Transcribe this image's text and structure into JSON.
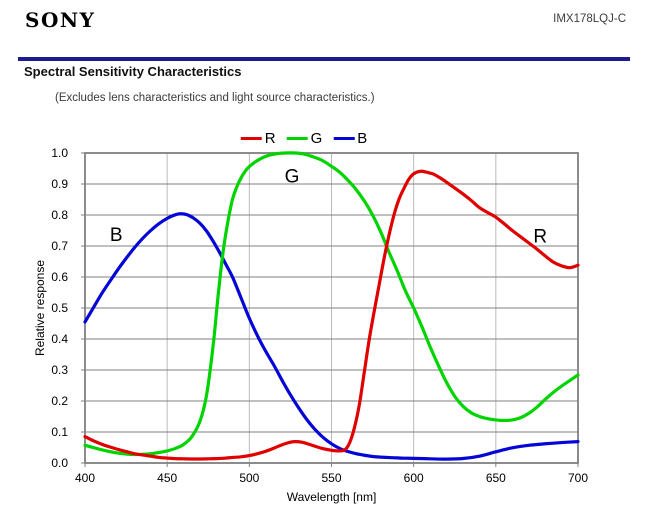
{
  "header": {
    "brand": "SONY",
    "product": "IMX178LQJ-C"
  },
  "title": "Spectral Sensitivity Characteristics",
  "subtitle": "(Excludes lens characteristics and light source characteristics.)",
  "colors": {
    "header_rule": "#1c1c8e",
    "grid_horizontal": "#808080",
    "grid_vertical": "#bbbbbb",
    "plot_border": "#808080",
    "red_series": "#e00000",
    "green_series": "#00d400",
    "blue_series": "#0505d6"
  },
  "chart_data": {
    "type": "line",
    "title": "",
    "xlabel": "Wavelength [nm]",
    "ylabel": "Relative response",
    "xlim": [
      400,
      700
    ],
    "ylim": [
      0,
      1.0
    ],
    "xticks": [
      400,
      450,
      500,
      550,
      600,
      650,
      700
    ],
    "yticks": [
      "0.0",
      "0.1",
      "0.2",
      "0.3",
      "0.4",
      "0.5",
      "0.6",
      "0.7",
      "0.8",
      "0.9",
      "1.0"
    ],
    "grid": true,
    "legend_position": "top-center",
    "annotations": [
      {
        "text": "B",
        "x_nm": 419,
        "y_val": 0.735
      },
      {
        "text": "G",
        "x_nm": 526,
        "y_val": 0.925
      },
      {
        "text": "R",
        "x_nm": 677,
        "y_val": 0.73
      }
    ],
    "series": [
      {
        "name": "R",
        "color": "#e00000",
        "points": [
          [
            400,
            0.085
          ],
          [
            405,
            0.072
          ],
          [
            410,
            0.061
          ],
          [
            415,
            0.052
          ],
          [
            420,
            0.044
          ],
          [
            425,
            0.037
          ],
          [
            430,
            0.03
          ],
          [
            435,
            0.026
          ],
          [
            440,
            0.022
          ],
          [
            445,
            0.018
          ],
          [
            450,
            0.016
          ],
          [
            455,
            0.014
          ],
          [
            460,
            0.0135
          ],
          [
            465,
            0.013
          ],
          [
            470,
            0.013
          ],
          [
            475,
            0.0135
          ],
          [
            480,
            0.014
          ],
          [
            485,
            0.0155
          ],
          [
            490,
            0.018
          ],
          [
            495,
            0.02
          ],
          [
            500,
            0.024
          ],
          [
            505,
            0.03
          ],
          [
            510,
            0.038
          ],
          [
            515,
            0.048
          ],
          [
            520,
            0.059
          ],
          [
            525,
            0.067
          ],
          [
            528,
            0.069
          ],
          [
            532,
            0.067
          ],
          [
            536,
            0.061
          ],
          [
            540,
            0.054
          ],
          [
            545,
            0.046
          ],
          [
            550,
            0.041
          ],
          [
            554,
            0.039
          ],
          [
            558,
            0.042
          ],
          [
            561,
            0.065
          ],
          [
            564,
            0.115
          ],
          [
            567,
            0.19
          ],
          [
            570,
            0.295
          ],
          [
            573,
            0.4
          ],
          [
            576,
            0.49
          ],
          [
            579,
            0.575
          ],
          [
            582,
            0.66
          ],
          [
            585,
            0.735
          ],
          [
            588,
            0.8
          ],
          [
            591,
            0.85
          ],
          [
            594,
            0.885
          ],
          [
            597,
            0.915
          ],
          [
            600,
            0.933
          ],
          [
            604,
            0.941
          ],
          [
            608,
            0.938
          ],
          [
            612,
            0.932
          ],
          [
            616,
            0.92
          ],
          [
            620,
            0.906
          ],
          [
            625,
            0.887
          ],
          [
            630,
            0.868
          ],
          [
            635,
            0.847
          ],
          [
            640,
            0.824
          ],
          [
            645,
            0.808
          ],
          [
            650,
            0.793
          ],
          [
            655,
            0.772
          ],
          [
            660,
            0.75
          ],
          [
            665,
            0.73
          ],
          [
            670,
            0.71
          ],
          [
            675,
            0.69
          ],
          [
            680,
            0.668
          ],
          [
            685,
            0.648
          ],
          [
            690,
            0.636
          ],
          [
            695,
            0.63
          ],
          [
            700,
            0.638
          ]
        ]
      },
      {
        "name": "G",
        "color": "#00d400",
        "points": [
          [
            400,
            0.057
          ],
          [
            405,
            0.05
          ],
          [
            410,
            0.043
          ],
          [
            415,
            0.037
          ],
          [
            420,
            0.032
          ],
          [
            425,
            0.029
          ],
          [
            430,
            0.0275
          ],
          [
            435,
            0.028
          ],
          [
            440,
            0.03
          ],
          [
            445,
            0.034
          ],
          [
            450,
            0.039
          ],
          [
            455,
            0.047
          ],
          [
            460,
            0.06
          ],
          [
            465,
            0.085
          ],
          [
            470,
            0.135
          ],
          [
            474,
            0.22
          ],
          [
            478,
            0.38
          ],
          [
            481,
            0.54
          ],
          [
            484,
            0.68
          ],
          [
            487,
            0.78
          ],
          [
            490,
            0.855
          ],
          [
            494,
            0.91
          ],
          [
            498,
            0.945
          ],
          [
            502,
            0.965
          ],
          [
            507,
            0.982
          ],
          [
            512,
            0.993
          ],
          [
            517,
            0.998
          ],
          [
            522,
            1.0
          ],
          [
            528,
            1.0
          ],
          [
            533,
            0.997
          ],
          [
            538,
            0.989
          ],
          [
            544,
            0.977
          ],
          [
            550,
            0.957
          ],
          [
            555,
            0.938
          ],
          [
            560,
            0.912
          ],
          [
            565,
            0.882
          ],
          [
            570,
            0.845
          ],
          [
            575,
            0.8
          ],
          [
            580,
            0.745
          ],
          [
            585,
            0.68
          ],
          [
            590,
            0.62
          ],
          [
            595,
            0.555
          ],
          [
            600,
            0.5
          ],
          [
            605,
            0.44
          ],
          [
            610,
            0.375
          ],
          [
            615,
            0.315
          ],
          [
            620,
            0.26
          ],
          [
            625,
            0.215
          ],
          [
            630,
            0.183
          ],
          [
            635,
            0.162
          ],
          [
            640,
            0.15
          ],
          [
            645,
            0.143
          ],
          [
            650,
            0.139
          ],
          [
            655,
            0.137
          ],
          [
            660,
            0.139
          ],
          [
            665,
            0.146
          ],
          [
            670,
            0.16
          ],
          [
            675,
            0.18
          ],
          [
            680,
            0.205
          ],
          [
            685,
            0.228
          ],
          [
            690,
            0.248
          ],
          [
            695,
            0.266
          ],
          [
            700,
            0.284
          ]
        ]
      },
      {
        "name": "B",
        "color": "#0505d6",
        "points": [
          [
            400,
            0.455
          ],
          [
            405,
            0.5
          ],
          [
            410,
            0.545
          ],
          [
            415,
            0.585
          ],
          [
            420,
            0.624
          ],
          [
            425,
            0.66
          ],
          [
            430,
            0.694
          ],
          [
            435,
            0.724
          ],
          [
            440,
            0.75
          ],
          [
            445,
            0.772
          ],
          [
            450,
            0.789
          ],
          [
            454,
            0.799
          ],
          [
            458,
            0.804
          ],
          [
            462,
            0.801
          ],
          [
            466,
            0.79
          ],
          [
            470,
            0.773
          ],
          [
            474,
            0.748
          ],
          [
            478,
            0.715
          ],
          [
            482,
            0.678
          ],
          [
            486,
            0.638
          ],
          [
            490,
            0.597
          ],
          [
            495,
            0.532
          ],
          [
            500,
            0.467
          ],
          [
            505,
            0.41
          ],
          [
            510,
            0.36
          ],
          [
            515,
            0.315
          ],
          [
            520,
            0.266
          ],
          [
            525,
            0.22
          ],
          [
            530,
            0.178
          ],
          [
            535,
            0.14
          ],
          [
            540,
            0.108
          ],
          [
            545,
            0.082
          ],
          [
            550,
            0.062
          ],
          [
            555,
            0.047
          ],
          [
            560,
            0.037
          ],
          [
            565,
            0.03
          ],
          [
            570,
            0.025
          ],
          [
            575,
            0.021
          ],
          [
            580,
            0.019
          ],
          [
            585,
            0.0175
          ],
          [
            590,
            0.0165
          ],
          [
            595,
            0.0155
          ],
          [
            600,
            0.015
          ],
          [
            610,
            0.0135
          ],
          [
            620,
            0.0125
          ],
          [
            630,
            0.0145
          ],
          [
            640,
            0.022
          ],
          [
            650,
            0.036
          ],
          [
            660,
            0.049
          ],
          [
            670,
            0.057
          ],
          [
            680,
            0.062
          ],
          [
            690,
            0.066
          ],
          [
            700,
            0.069
          ]
        ]
      }
    ],
    "legend_order": [
      "R",
      "G",
      "B"
    ]
  }
}
